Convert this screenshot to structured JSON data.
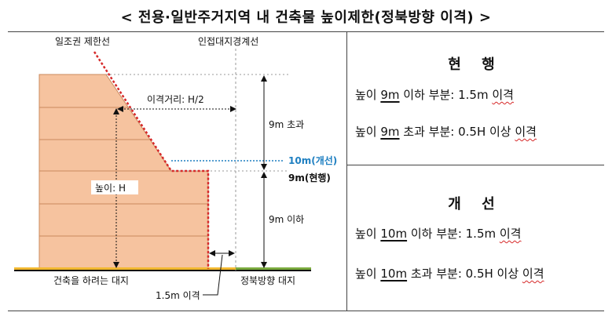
{
  "title": "< 전용·일반주거지역 내 건축물 높이제한(정북방향 이격) >",
  "diagram": {
    "label_daylight_line": "일조권 제한선",
    "label_boundary": "인접대지경계선",
    "label_setback_distance": "이격거리: H/2",
    "label_over_9m": "9m 초과",
    "label_10m_improved": "10m(개선)",
    "label_9m_current": "9m(현행)",
    "label_height": "높이: H",
    "label_under_9m": "9m 이하",
    "label_building_lot": "건축을 하려는 대지",
    "label_north_lot": "정북방향 대지",
    "label_setback_1_5m": "1.5m 이격",
    "colors": {
      "building_fill": "#f6c39f",
      "building_stroke": "#c98a5e",
      "restriction_line": "#d62828",
      "improved_line": "#1e7fc1",
      "ground_left": "#f2b830",
      "ground_right": "#7aaa3e"
    }
  },
  "current": {
    "heading": "현  행",
    "line1": {
      "prefix": "높이 ",
      "height": "9m",
      "mid": " 이하 부분: 1.5m ",
      "tail": "이격"
    },
    "line2": {
      "prefix": "높이 ",
      "height": "9m",
      "mid": " 초과 부분: 0.5H 이상 ",
      "tail": "이격"
    }
  },
  "improved": {
    "heading": "개  선",
    "line1": {
      "prefix": "높이 ",
      "height": "10m",
      "mid": " 이하 부분: 1.5m ",
      "tail": "이격"
    },
    "line2": {
      "prefix": "높이 ",
      "height": "10m",
      "mid": " 초과 부분: 0.5H 이상 ",
      "tail": "이격"
    }
  }
}
